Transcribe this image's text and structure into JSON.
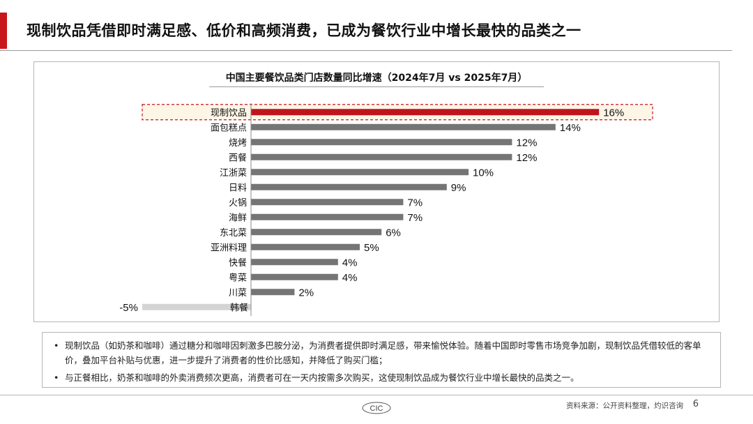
{
  "header": {
    "title": "现制饮品凭借即时满足感、低价和高频消费，已成为餐饮行业中增长最快的品类之一"
  },
  "chart_data": {
    "type": "bar",
    "orientation": "horizontal",
    "title": "中国主要餐饮品类门店数量同比增速（2024年7月 vs 2025年7月）",
    "categories": [
      "现制饮品",
      "面包糕点",
      "烧烤",
      "西餐",
      "江浙菜",
      "日料",
      "火锅",
      "海鲜",
      "东北菜",
      "亚洲料理",
      "快餐",
      "粤菜",
      "川菜",
      "韩餐"
    ],
    "values": [
      16,
      14,
      12,
      12,
      10,
      9,
      7,
      7,
      6,
      5,
      4,
      4,
      2,
      -5
    ],
    "value_labels": [
      "16%",
      "14%",
      "12%",
      "12%",
      "10%",
      "9%",
      "7%",
      "7%",
      "6%",
      "5%",
      "4%",
      "4%",
      "2%",
      "-5%"
    ],
    "highlight_category": "现制饮品",
    "colors": {
      "highlight": "#c0141c",
      "default": "#757575",
      "negative": "#d4d4d4",
      "highlight_bg": "#fdf5e6"
    }
  },
  "notes": [
    "现制饮品（如奶茶和咖啡）通过糖分和咖啡因刺激多巴胺分泌，为消费者提供即时满足感，带来愉悦体验。随着中国即时零售市场竞争加剧，现制饮品凭借较低的客单价，叠加平台补贴与优惠，进一步提升了消费者的性价比感知，并降低了购买门槛；",
    "与正餐相比，奶茶和咖啡的外卖消费频次更高，消费者可在一天内按需多次购买，这使现制饮品成为餐饮行业中增长最快的品类之一。"
  ],
  "footer": {
    "logo_text": "CIC",
    "source": "资料来源：公开资料整理，灼识咨询",
    "page_number": "6"
  }
}
